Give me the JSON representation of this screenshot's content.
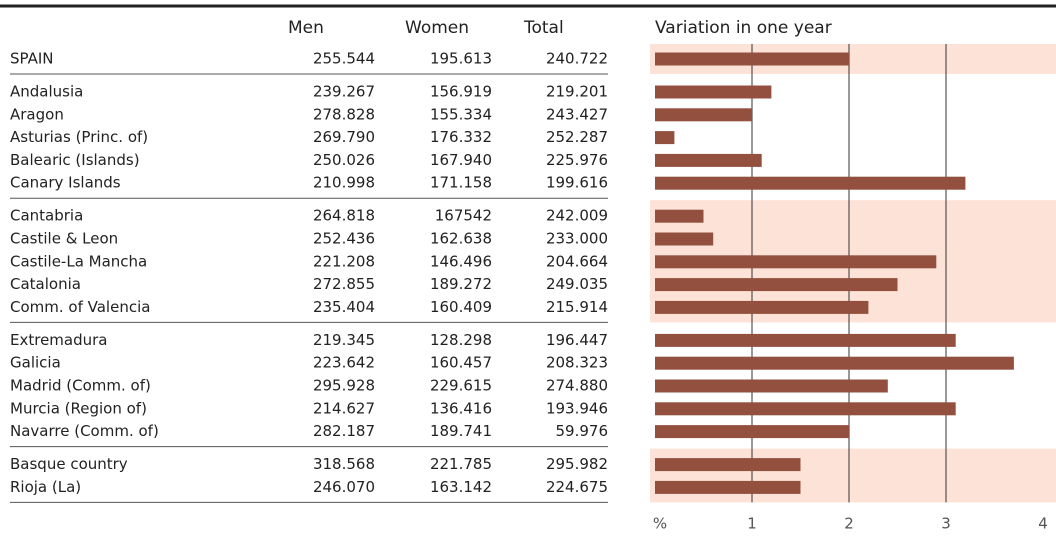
{
  "table": {
    "columns": [
      "Men",
      "Women",
      "Total"
    ],
    "groups": [
      [
        {
          "name": "SPAIN",
          "men": "255.544",
          "women": "195.613",
          "total": "240.722"
        }
      ],
      [
        {
          "name": "Andalusia",
          "men": "239.267",
          "women": "156.919",
          "total": "219.201"
        },
        {
          "name": "Aragon",
          "men": "278.828",
          "women": "155.334",
          "total": "243.427"
        },
        {
          "name": "Asturias (Princ. of)",
          "men": "269.790",
          "women": "176.332",
          "total": "252.287"
        },
        {
          "name": "Balearic (Islands)",
          "men": "250.026",
          "women": "167.940",
          "total": "225.976"
        },
        {
          "name": "Canary Islands",
          "men": "210.998",
          "women": "171.158",
          "total": "199.616"
        }
      ],
      [
        {
          "name": "Cantabria",
          "men": "264.818",
          "women": "167542",
          "total": "242.009"
        },
        {
          "name": "Castile & Leon",
          "men": "252.436",
          "women": "162.638",
          "total": "233.000"
        },
        {
          "name": "Castile-La Mancha",
          "men": "221.208",
          "women": "146.496",
          "total": "204.664"
        },
        {
          "name": "Catalonia",
          "men": "272.855",
          "women": "189.272",
          "total": "249.035"
        },
        {
          "name": "Comm. of Valencia",
          "men": "235.404",
          "women": "160.409",
          "total": "215.914"
        }
      ],
      [
        {
          "name": "Extremadura",
          "men": "219.345",
          "women": "128.298",
          "total": "196.447"
        },
        {
          "name": "Galicia",
          "men": "223.642",
          "women": "160.457",
          "total": "208.323"
        },
        {
          "name": "Madrid (Comm. of)",
          "men": "295.928",
          "women": "229.615",
          "total": "274.880"
        },
        {
          "name": "Murcia (Region of)",
          "men": "214.627",
          "women": "136.416",
          "total": "193.946"
        },
        {
          "name": "Navarre (Comm. of)",
          "men": "282.187",
          "women": "189.741",
          "total": "59.976"
        }
      ],
      [
        {
          "name": "Basque country",
          "men": "318.568",
          "women": "221.785",
          "total": "295.982"
        },
        {
          "name": "Rioja (La)",
          "men": "246.070",
          "women": "163.142",
          "total": "224.675"
        }
      ]
    ]
  },
  "chart_data": {
    "type": "bar",
    "orientation": "horizontal",
    "title": "Variation in one year",
    "values": [
      2.0,
      1.2,
      1.0,
      0.2,
      1.1,
      3.2,
      0.5,
      0.6,
      2.9,
      2.5,
      2.2,
      3.1,
      3.7,
      2.4,
      3.1,
      2.0,
      1.5,
      1.5
    ],
    "color": "#93503f",
    "band_color": "#fde3d7",
    "xlim": [
      0,
      4
    ],
    "xticks": [
      {
        "value": 0,
        "label": "%"
      },
      1,
      2,
      3,
      4
    ],
    "grid": true
  }
}
